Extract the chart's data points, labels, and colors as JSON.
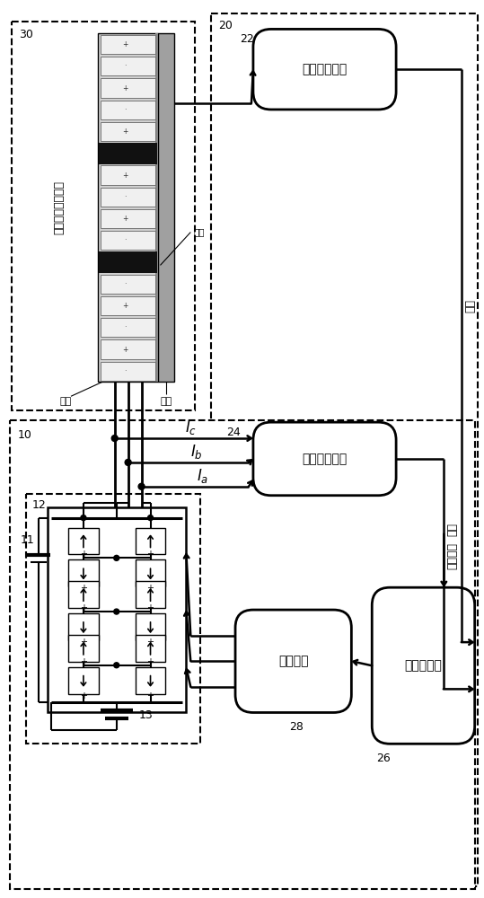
{
  "bg": "#ffffff",
  "motor_title": "永磁游标直线电机",
  "primary_label": "初级",
  "secondary_label": "次级",
  "barrier_label": "隔磁",
  "pos_label": "位置检测单元",
  "cur_label": "电流检测单元",
  "drv_label": "驱动单元",
  "mc_label": "主控制单元",
  "speed_label": "速度",
  "current_label": "电流",
  "preset_label": "预设速度",
  "Ic": "$I_c$",
  "Ib": "$I_b$",
  "Ia": "$I_a$",
  "n10": "10",
  "n11": "11",
  "n12": "12",
  "n13": "13",
  "n20": "20",
  "n22": "22",
  "n24": "24",
  "n26": "26",
  "n28": "28",
  "n30": "30",
  "fig_w": 5.39,
  "fig_h": 10.0,
  "dpi": 100
}
